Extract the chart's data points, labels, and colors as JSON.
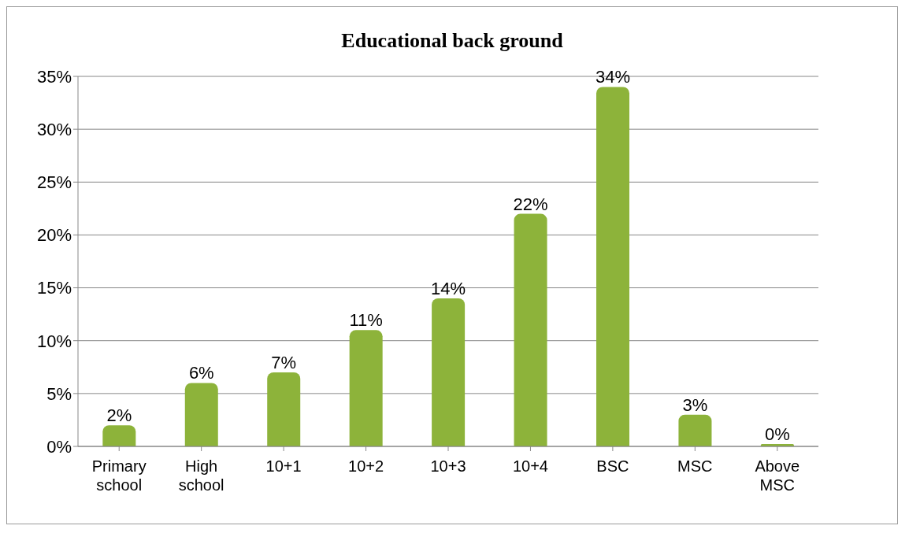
{
  "chart_data": {
    "type": "bar",
    "title": "Educational back ground",
    "categories": [
      "Primary school",
      "High school",
      "10+1",
      "10+2",
      "10+3",
      "10+4",
      "BSC",
      "MSC",
      "Above MSC"
    ],
    "values": [
      2,
      6,
      7,
      11,
      14,
      22,
      34,
      3,
      0
    ],
    "value_labels": [
      "2%",
      "6%",
      "7%",
      "11%",
      "14%",
      "22%",
      "34%",
      "3%",
      "0%"
    ],
    "color": "#8db33a",
    "ylim": [
      0,
      35
    ],
    "yticks": [
      {
        "value": 0,
        "label": "0%"
      },
      {
        "value": 5,
        "label": "5%"
      },
      {
        "value": 10,
        "label": "10%"
      },
      {
        "value": 15,
        "label": "15%"
      },
      {
        "value": 20,
        "label": "20%"
      },
      {
        "value": 25,
        "label": "25%"
      },
      {
        "value": 30,
        "label": "30%"
      },
      {
        "value": 35,
        "label": "35%"
      }
    ],
    "grid": "y"
  }
}
